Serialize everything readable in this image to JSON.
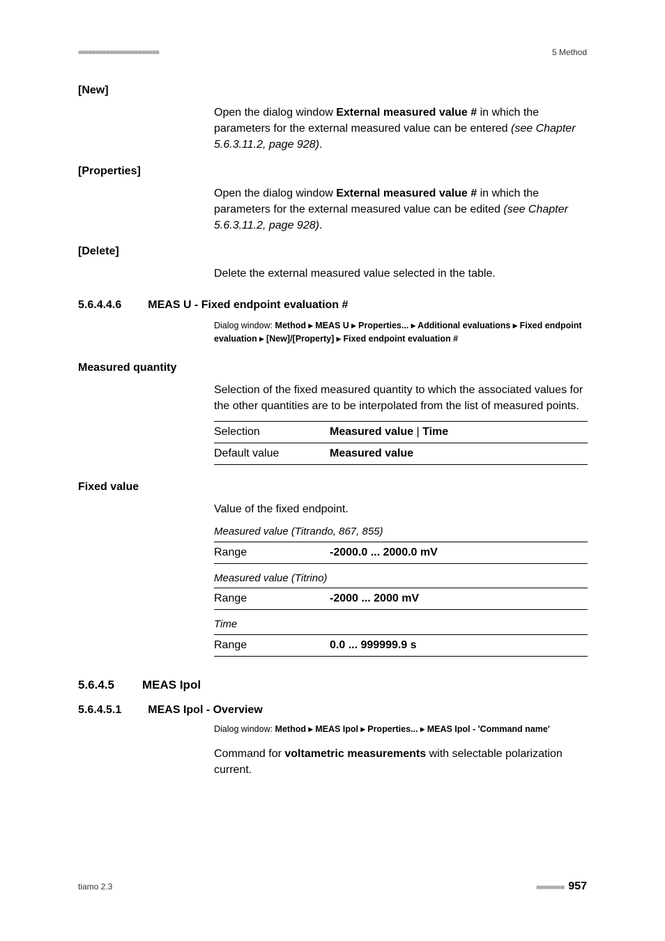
{
  "header": {
    "dots": "■■■■■■■■■■■■■■■■■■■■■■■",
    "right": "5 Method"
  },
  "new": {
    "label": "[New]",
    "prefix": "Open the dialog window ",
    "bold": "External measured value #",
    "mid": " in which the parameters for the external measured value can be entered ",
    "ital": "(see Chapter 5.6.3.11.2, page 928)",
    "suffix": "."
  },
  "properties": {
    "label": "[Properties]",
    "prefix": "Open the dialog window ",
    "bold": "External measured value #",
    "mid": " in which the parameters for the external measured value can be edited ",
    "ital": "(see Chapter 5.6.3.11.2, page 928)",
    "suffix": "."
  },
  "delete": {
    "label": "[Delete]",
    "text": "Delete the external measured value selected in the table."
  },
  "sec_56446": {
    "num": "5.6.4.4.6",
    "title": "MEAS U - Fixed endpoint evaluation #",
    "crumb_a": "Dialog window: ",
    "crumb_b": "Method ▸ MEAS U ▸ Properties... ▸ Additional evaluations ▸ Fixed endpoint evaluation ▸ [New]/[Property] ▸ Fixed endpoint evaluation #"
  },
  "measured_quantity": {
    "label": "Measured quantity",
    "text": "Selection of the fixed measured quantity to which the associated values for the other quantities are to be interpolated from the list of measured points.",
    "rows": [
      {
        "k": "Selection",
        "v1": "Measured value",
        "sep": " | ",
        "v2": "Time"
      },
      {
        "k": "Default value",
        "v1": "Measured value"
      }
    ]
  },
  "fixed_value": {
    "label": "Fixed value",
    "text": "Value of the fixed endpoint.",
    "tables": [
      {
        "caption": "Measured value (Titrando, 867, 855)",
        "rows": [
          {
            "k": "Range",
            "v": "-2000.0 ... 2000.0 mV"
          }
        ]
      },
      {
        "caption": "Measured value (Titrino)",
        "rows": [
          {
            "k": "Range",
            "v": "-2000 ... 2000 mV"
          }
        ]
      },
      {
        "caption": "Time",
        "rows": [
          {
            "k": "Range",
            "v": "0.0 ... 999999.9 s"
          }
        ]
      }
    ]
  },
  "sec_5645": {
    "num": "5.6.4.5",
    "title": "MEAS Ipol"
  },
  "sec_56451": {
    "num": "5.6.4.5.1",
    "title": "MEAS Ipol - Overview",
    "crumb_a": "Dialog window: ",
    "crumb_b": "Method ▸ MEAS Ipol ▸ Properties... ▸ MEAS Ipol - 'Command name'",
    "body_a": "Command for ",
    "body_bold": "voltametric measurements",
    "body_b": " with selectable polarization current."
  },
  "footer": {
    "left": "tiamo 2.3",
    "dots": "■■■■■■■■",
    "page": "957"
  }
}
